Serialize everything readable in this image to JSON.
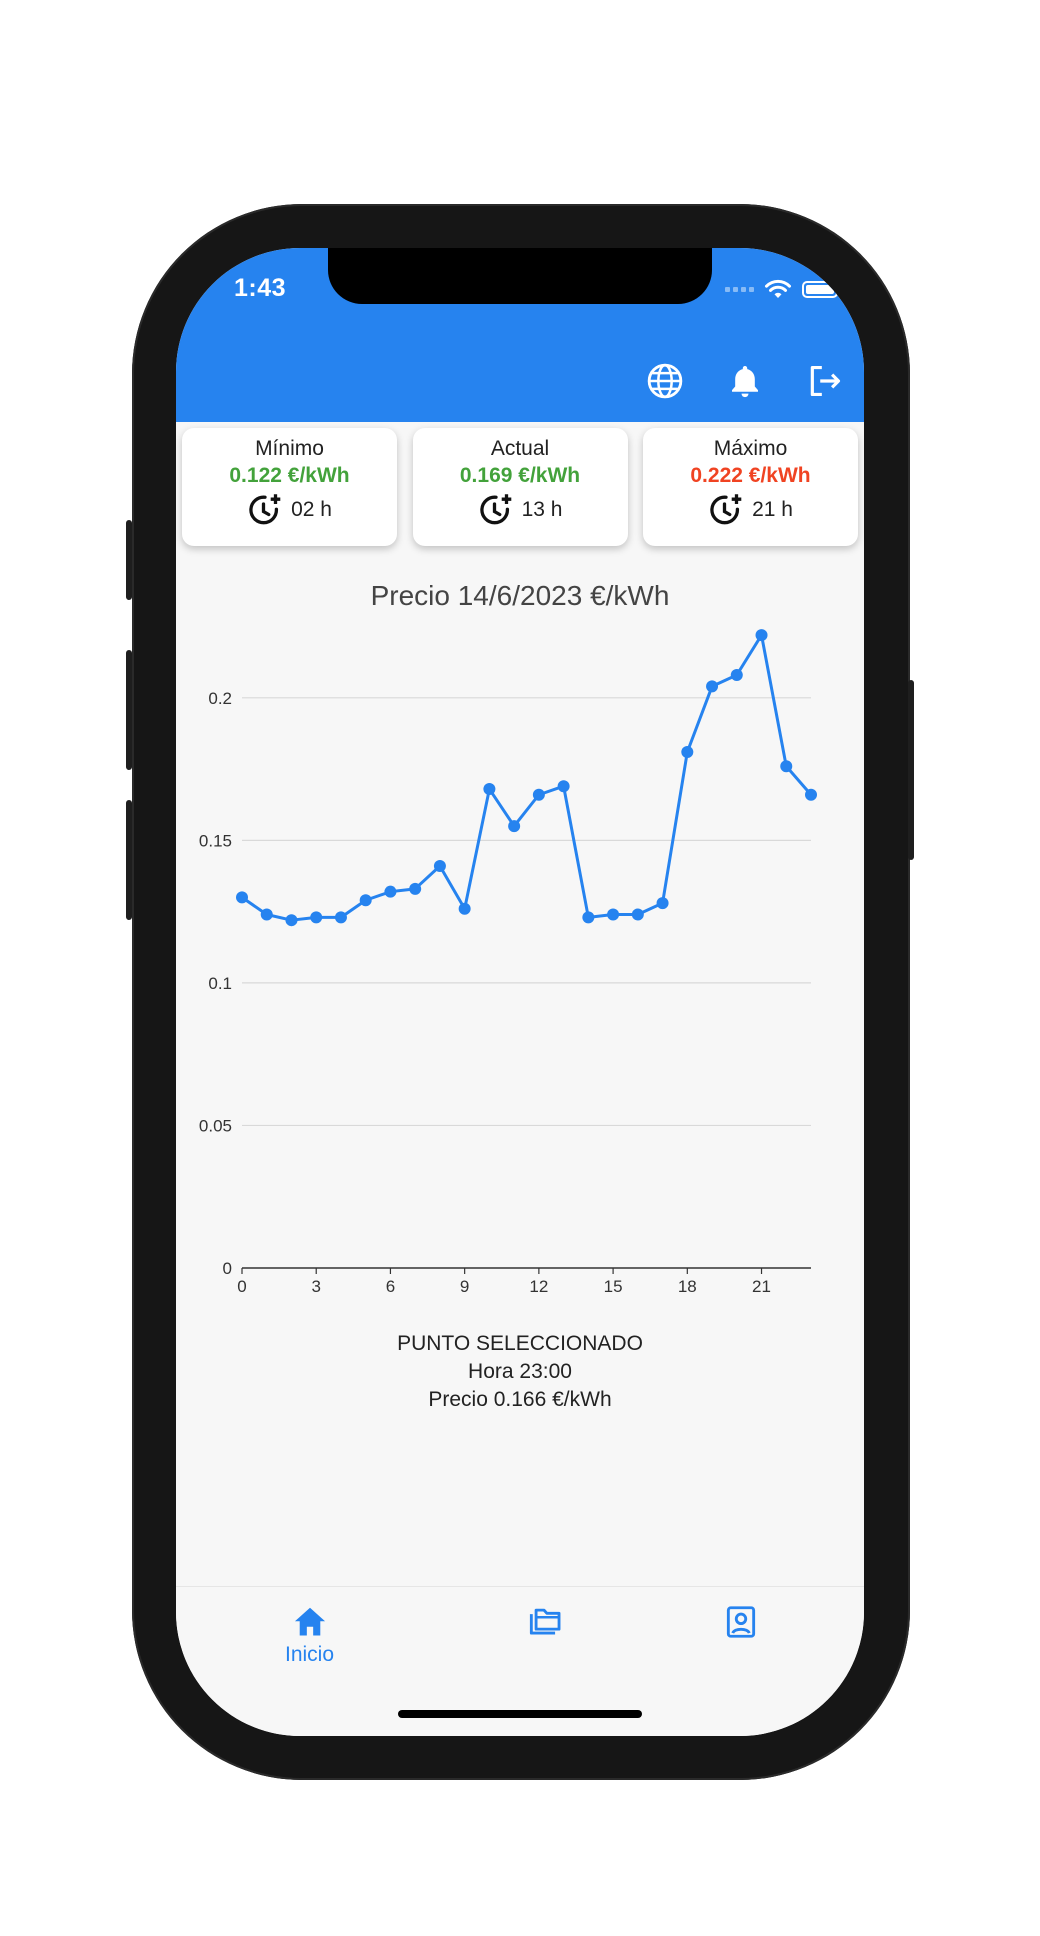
{
  "status_bar": {
    "time": "1:43"
  },
  "colors": {
    "primary": "#2683ef",
    "good": "#43a23b",
    "bad": "#f04322",
    "line": "#2683ef"
  },
  "appbar": {
    "actions": [
      "language-icon",
      "notifications-icon",
      "logout-icon"
    ]
  },
  "summary": {
    "min": {
      "label": "Mínimo",
      "price": "0.122 €/kWh",
      "hour": "02 h"
    },
    "current": {
      "label": "Actual",
      "price": "0.169 €/kWh",
      "hour": "13 h"
    },
    "max": {
      "label": "Máximo",
      "price": "0.222 €/kWh",
      "hour": "21 h"
    }
  },
  "chart_data": {
    "type": "line",
    "title": "Precio 14/6/2023 €/kWh",
    "x": [
      0,
      1,
      2,
      3,
      4,
      5,
      6,
      7,
      8,
      9,
      10,
      11,
      12,
      13,
      14,
      15,
      16,
      17,
      18,
      19,
      20,
      21,
      22,
      23
    ],
    "series": [
      {
        "values": [
          0.13,
          0.124,
          0.122,
          0.123,
          0.123,
          0.129,
          0.132,
          0.133,
          0.141,
          0.126,
          0.168,
          0.155,
          0.166,
          0.169,
          0.123,
          0.124,
          0.124,
          0.128,
          0.181,
          0.204,
          0.208,
          0.222,
          0.176,
          0.166
        ]
      }
    ],
    "xlim": [
      0,
      23
    ],
    "ylim": [
      0,
      0.2
    ],
    "xticks": [
      "0",
      "3",
      "6",
      "9",
      "12",
      "15",
      "18",
      "21"
    ],
    "yticks": [
      "0",
      "0.05",
      "0.1",
      "0.15",
      "0.2"
    ],
    "grid": true
  },
  "selected_point": {
    "heading": "PUNTO SELECCIONADO",
    "hour": "Hora 23:00",
    "price": "Precio 0.166 €/kWh"
  },
  "bottom_nav": {
    "items": [
      {
        "label": "Inicio",
        "icon": "home-icon",
        "active": true
      },
      {
        "label": "",
        "icon": "folders-icon",
        "active": false
      },
      {
        "label": "",
        "icon": "contact-card-icon",
        "active": false
      }
    ]
  }
}
